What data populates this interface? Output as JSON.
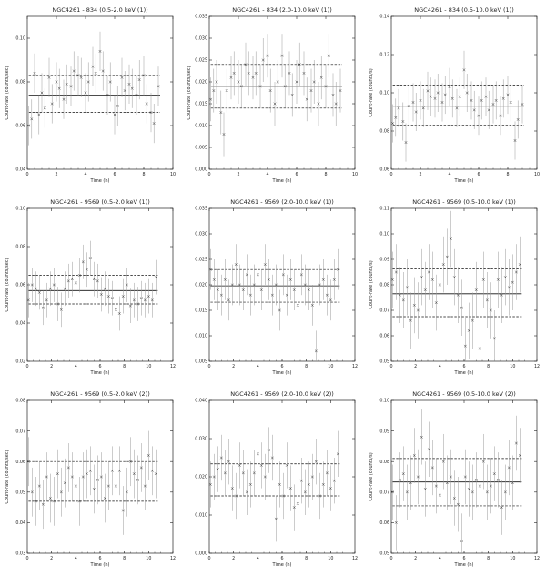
{
  "chart_data": [
    {
      "type": "scatter",
      "title": "NGC4261 - 834 (0.5-2.0 keV (1))",
      "xlabel": "Time (h)",
      "ylabel": "Count-rate (counts/sec)",
      "xlim": [
        0,
        10
      ],
      "ylim": [
        0.04,
        0.11
      ],
      "xticks": [
        "0",
        "2",
        "4",
        "6",
        "8",
        "10"
      ],
      "yticks": [
        "0.04",
        "0.06",
        "0.08",
        "0.10"
      ],
      "ytick_values": [
        0.04,
        0.06,
        0.08,
        0.1
      ],
      "mean": 0.074,
      "band": [
        0.066,
        0.083
      ],
      "x": [
        0.1,
        0.3,
        0.5,
        0.8,
        1.0,
        1.2,
        1.5,
        1.7,
        2.0,
        2.2,
        2.5,
        2.7,
        3.0,
        3.2,
        3.5,
        3.7,
        4.0,
        4.2,
        4.5,
        4.7,
        5.0,
        5.2,
        5.5,
        5.7,
        6.0,
        6.2,
        6.5,
        6.7,
        7.0,
        7.2,
        7.5,
        7.7,
        8.0,
        8.2,
        8.5,
        8.7,
        9.0
      ],
      "y": [
        0.06,
        0.063,
        0.084,
        0.065,
        0.075,
        0.068,
        0.082,
        0.07,
        0.08,
        0.077,
        0.072,
        0.079,
        0.078,
        0.085,
        0.083,
        0.082,
        0.075,
        0.08,
        0.087,
        0.084,
        0.094,
        0.085,
        0.074,
        0.08,
        0.065,
        0.069,
        0.082,
        0.076,
        0.079,
        0.077,
        0.074,
        0.081,
        0.083,
        0.07,
        0.066,
        0.061,
        0.078
      ],
      "err": 0.009
    },
    {
      "type": "scatter",
      "title": "NGC4261 - 834 (2.0-10.0 keV (1))",
      "xlabel": "Time (h)",
      "ylabel": "Count-rate (counts/sec)",
      "xlim": [
        0,
        10
      ],
      "ylim": [
        0.0,
        0.035
      ],
      "xticks": [
        "0",
        "2",
        "4",
        "6",
        "8",
        "10"
      ],
      "yticks": [
        "0.000",
        "0.005",
        "0.010",
        "0.015",
        "0.020",
        "0.025",
        "0.030",
        "0.035"
      ],
      "ytick_values": [
        0.0,
        0.005,
        0.01,
        0.015,
        0.02,
        0.025,
        0.03,
        0.035
      ],
      "mean": 0.019,
      "band": [
        0.014,
        0.024
      ],
      "x": [
        0.1,
        0.3,
        0.5,
        0.8,
        1.0,
        1.2,
        1.5,
        1.7,
        2.0,
        2.2,
        2.5,
        2.7,
        3.0,
        3.2,
        3.5,
        3.7,
        4.0,
        4.2,
        4.5,
        4.7,
        5.0,
        5.2,
        5.5,
        5.7,
        6.0,
        6.2,
        6.5,
        6.7,
        7.0,
        7.2,
        7.5,
        7.7,
        8.0,
        8.2,
        8.5,
        8.7,
        9.0
      ],
      "y": [
        0.016,
        0.018,
        0.02,
        0.013,
        0.008,
        0.018,
        0.021,
        0.022,
        0.02,
        0.019,
        0.024,
        0.022,
        0.021,
        0.022,
        0.019,
        0.025,
        0.026,
        0.018,
        0.015,
        0.02,
        0.026,
        0.019,
        0.022,
        0.017,
        0.02,
        0.024,
        0.022,
        0.016,
        0.018,
        0.02,
        0.015,
        0.021,
        0.019,
        0.026,
        0.017,
        0.015,
        0.018
      ],
      "err": 0.005
    },
    {
      "type": "scatter",
      "title": "NGC4261 - 834 (0.5-10.0 keV (1))",
      "xlabel": "Time (h)",
      "ylabel": "Count-rate (counts/s)",
      "xlim": [
        0,
        10
      ],
      "ylim": [
        0.06,
        0.14
      ],
      "xticks": [
        "0",
        "2",
        "4",
        "6",
        "8",
        "10"
      ],
      "yticks": [
        "0.06",
        "0.08",
        "0.10",
        "0.12",
        "0.14"
      ],
      "ytick_values": [
        0.06,
        0.08,
        0.1,
        0.12,
        0.14
      ],
      "mean": 0.093,
      "band": [
        0.083,
        0.104
      ],
      "x": [
        0.1,
        0.3,
        0.5,
        0.8,
        1.0,
        1.2,
        1.5,
        1.7,
        2.0,
        2.2,
        2.5,
        2.7,
        3.0,
        3.2,
        3.5,
        3.7,
        4.0,
        4.2,
        4.5,
        4.7,
        5.0,
        5.2,
        5.5,
        5.7,
        6.0,
        6.2,
        6.5,
        6.7,
        7.0,
        7.2,
        7.5,
        7.7,
        8.0,
        8.2,
        8.5,
        8.7,
        9.0
      ],
      "y": [
        0.084,
        0.087,
        0.092,
        0.085,
        0.074,
        0.093,
        0.095,
        0.09,
        0.096,
        0.092,
        0.101,
        0.098,
        0.097,
        0.1,
        0.095,
        0.099,
        0.103,
        0.097,
        0.092,
        0.098,
        0.112,
        0.1,
        0.096,
        0.091,
        0.088,
        0.096,
        0.098,
        0.091,
        0.094,
        0.096,
        0.088,
        0.097,
        0.099,
        0.095,
        0.075,
        0.086,
        0.094
      ],
      "err": 0.01
    },
    {
      "type": "scatter",
      "title": "NGC4261 - 9569 (0.5-2.0 keV (1))",
      "xlabel": "Time (h)",
      "ylabel": "Count-rate (counts/sec)",
      "xlim": [
        0,
        12
      ],
      "ylim": [
        0.02,
        0.1
      ],
      "xticks": [
        "0",
        "2",
        "4",
        "6",
        "8",
        "10",
        "12"
      ],
      "yticks": [
        "0.02",
        "0.04",
        "0.06",
        "0.08",
        "0.10"
      ],
      "ytick_values": [
        0.02,
        0.04,
        0.06,
        0.08,
        0.1
      ],
      "mean": 0.057,
      "band": [
        0.05,
        0.065
      ],
      "x": [
        0.1,
        0.4,
        0.7,
        1.0,
        1.3,
        1.6,
        1.9,
        2.2,
        2.5,
        2.8,
        3.1,
        3.4,
        3.7,
        4.0,
        4.3,
        4.6,
        4.9,
        5.2,
        5.5,
        5.8,
        6.1,
        6.4,
        6.7,
        7.0,
        7.3,
        7.6,
        7.9,
        8.2,
        8.5,
        8.8,
        9.1,
        9.4,
        9.7,
        10.0,
        10.3,
        10.6
      ],
      "y": [
        0.052,
        0.06,
        0.058,
        0.056,
        0.048,
        0.052,
        0.058,
        0.06,
        0.05,
        0.047,
        0.058,
        0.062,
        0.063,
        0.061,
        0.065,
        0.072,
        0.068,
        0.074,
        0.063,
        0.062,
        0.055,
        0.058,
        0.054,
        0.053,
        0.047,
        0.045,
        0.054,
        0.06,
        0.049,
        0.052,
        0.05,
        0.053,
        0.052,
        0.054,
        0.052,
        0.064
      ],
      "err": 0.009
    },
    {
      "type": "scatter",
      "title": "NGC4261 - 9569 (2.0-10.0 keV (1))",
      "xlabel": "Time (h)",
      "ylabel": "",
      "xlim": [
        0,
        12
      ],
      "ylim": [
        0.005,
        0.035
      ],
      "xticks": [
        "0",
        "2",
        "4",
        "6",
        "8",
        "10",
        "12"
      ],
      "yticks": [
        "0.005",
        "0.010",
        "0.015",
        "0.020",
        "0.025",
        "0.030",
        "0.035"
      ],
      "ytick_values": [
        0.005,
        0.01,
        0.015,
        0.02,
        0.025,
        0.03,
        0.035
      ],
      "mean": 0.0198,
      "band": [
        0.0166,
        0.023
      ],
      "x": [
        0.1,
        0.4,
        0.7,
        1.0,
        1.3,
        1.6,
        1.9,
        2.2,
        2.5,
        2.8,
        3.1,
        3.4,
        3.7,
        4.0,
        4.3,
        4.6,
        4.9,
        5.2,
        5.5,
        5.8,
        6.1,
        6.4,
        6.7,
        7.0,
        7.3,
        7.6,
        7.9,
        8.2,
        8.5,
        8.8,
        9.1,
        9.4,
        9.7,
        10.0,
        10.3,
        10.6
      ],
      "y": [
        0.023,
        0.021,
        0.019,
        0.018,
        0.021,
        0.017,
        0.02,
        0.024,
        0.02,
        0.019,
        0.022,
        0.018,
        0.02,
        0.022,
        0.019,
        0.024,
        0.021,
        0.018,
        0.02,
        0.015,
        0.022,
        0.018,
        0.021,
        0.019,
        0.016,
        0.022,
        0.02,
        0.019,
        0.016,
        0.007,
        0.02,
        0.021,
        0.018,
        0.017,
        0.021,
        0.023
      ],
      "err": 0.004
    },
    {
      "type": "scatter",
      "title": "NGC4261 - 9569 (0.5-10.0 keV (1))",
      "xlabel": "Time (h)",
      "ylabel": "Count-rate (counts/s)",
      "xlim": [
        0,
        12
      ],
      "ylim": [
        0.05,
        0.11
      ],
      "xticks": [
        "0",
        "2",
        "4",
        "6",
        "8",
        "10",
        "12"
      ],
      "yticks": [
        "0.05",
        "0.06",
        "0.07",
        "0.08",
        "0.09",
        "0.10",
        "0.11"
      ],
      "ytick_values": [
        0.05,
        0.06,
        0.07,
        0.08,
        0.09,
        0.1,
        0.11
      ],
      "mean": 0.0765,
      "band": [
        0.0675,
        0.0862
      ],
      "x": [
        0.1,
        0.4,
        0.7,
        1.0,
        1.3,
        1.6,
        1.9,
        2.2,
        2.5,
        2.8,
        3.1,
        3.4,
        3.7,
        4.0,
        4.3,
        4.6,
        4.9,
        5.2,
        5.5,
        5.8,
        6.1,
        6.4,
        6.7,
        7.0,
        7.3,
        7.6,
        7.9,
        8.2,
        8.5,
        8.8,
        9.1,
        9.4,
        9.7,
        10.0,
        10.3,
        10.6
      ],
      "y": [
        0.082,
        0.085,
        0.076,
        0.074,
        0.079,
        0.066,
        0.072,
        0.07,
        0.083,
        0.078,
        0.085,
        0.082,
        0.073,
        0.08,
        0.088,
        0.091,
        0.098,
        0.083,
        0.076,
        0.071,
        0.056,
        0.062,
        0.066,
        0.078,
        0.055,
        0.082,
        0.074,
        0.07,
        0.059,
        0.082,
        0.076,
        0.083,
        0.079,
        0.081,
        0.085,
        0.088
      ],
      "err": 0.011
    },
    {
      "type": "scatter",
      "title": "NGC4261 - 9569 (0.5-2.0 keV (2))",
      "xlabel": "Time (h)",
      "ylabel": "Count-rate (counts/sec)",
      "xlim": [
        0,
        12
      ],
      "ylim": [
        0.03,
        0.08
      ],
      "xticks": [
        "0",
        "2",
        "4",
        "6",
        "8",
        "10",
        "12"
      ],
      "yticks": [
        "0.03",
        "0.04",
        "0.05",
        "0.06",
        "0.07",
        "0.08"
      ],
      "ytick_values": [
        0.03,
        0.04,
        0.05,
        0.06,
        0.07,
        0.08
      ],
      "mean": 0.054,
      "band": [
        0.047,
        0.06
      ],
      "x": [
        0.1,
        0.4,
        0.7,
        1.0,
        1.3,
        1.6,
        1.9,
        2.2,
        2.5,
        2.8,
        3.1,
        3.4,
        3.7,
        4.0,
        4.3,
        4.6,
        4.9,
        5.2,
        5.5,
        5.8,
        6.1,
        6.4,
        6.7,
        7.0,
        7.3,
        7.6,
        7.9,
        8.2,
        8.5,
        8.8,
        9.1,
        9.4,
        9.7,
        10.0,
        10.3,
        10.6
      ],
      "y": [
        0.06,
        0.05,
        0.047,
        0.052,
        0.046,
        0.055,
        0.048,
        0.047,
        0.056,
        0.05,
        0.053,
        0.058,
        0.055,
        0.052,
        0.047,
        0.055,
        0.056,
        0.057,
        0.051,
        0.054,
        0.055,
        0.048,
        0.052,
        0.057,
        0.052,
        0.057,
        0.044,
        0.05,
        0.06,
        0.056,
        0.054,
        0.058,
        0.052,
        0.062,
        0.057,
        0.056
      ],
      "err": 0.008
    },
    {
      "type": "scatter",
      "title": "NGC4261 - 9569 (2.0-10.0 keV (2))",
      "xlabel": "Time (h)",
      "ylabel": "",
      "xlim": [
        0,
        12
      ],
      "ylim": [
        0.0,
        0.04
      ],
      "xticks": [
        "0",
        "2",
        "4",
        "6",
        "8",
        "10",
        "12"
      ],
      "yticks": [
        "0.000",
        "0.010",
        "0.020",
        "0.030",
        "0.040"
      ],
      "ytick_values": [
        0.0,
        0.01,
        0.02,
        0.03,
        0.04
      ],
      "mean": 0.0192,
      "band": [
        0.015,
        0.0234
      ],
      "x": [
        0.1,
        0.4,
        0.7,
        1.0,
        1.3,
        1.6,
        1.9,
        2.2,
        2.5,
        2.8,
        3.1,
        3.4,
        3.7,
        4.0,
        4.3,
        4.6,
        4.9,
        5.2,
        5.5,
        5.8,
        6.1,
        6.4,
        6.7,
        7.0,
        7.3,
        7.6,
        7.9,
        8.2,
        8.5,
        8.8,
        9.1,
        9.4,
        9.7,
        10.0,
        10.3,
        10.6
      ],
      "y": [
        0.018,
        0.02,
        0.022,
        0.025,
        0.021,
        0.024,
        0.017,
        0.015,
        0.023,
        0.021,
        0.016,
        0.018,
        0.021,
        0.026,
        0.023,
        0.02,
        0.027,
        0.025,
        0.009,
        0.018,
        0.015,
        0.023,
        0.017,
        0.012,
        0.013,
        0.019,
        0.016,
        0.018,
        0.02,
        0.024,
        0.015,
        0.018,
        0.021,
        0.017,
        0.019,
        0.026
      ],
      "err": 0.006
    },
    {
      "type": "scatter",
      "title": "NGC4261 - 9569 (0.5-10.0 keV (2))",
      "xlabel": "Time (h)",
      "ylabel": "Count-rate (counts/s)",
      "xlim": [
        0,
        12
      ],
      "ylim": [
        0.05,
        0.1
      ],
      "xticks": [
        "0",
        "2",
        "4",
        "6",
        "8",
        "10",
        "12"
      ],
      "yticks": [
        "0.05",
        "0.06",
        "0.07",
        "0.08",
        "0.09",
        "0.10"
      ],
      "ytick_values": [
        0.05,
        0.06,
        0.07,
        0.08,
        0.09,
        0.1
      ],
      "mean": 0.0733,
      "band": [
        0.0655,
        0.081
      ],
      "x": [
        0.1,
        0.4,
        0.7,
        1.0,
        1.3,
        1.6,
        1.9,
        2.2,
        2.5,
        2.8,
        3.1,
        3.4,
        3.7,
        4.0,
        4.3,
        4.6,
        4.9,
        5.2,
        5.5,
        5.8,
        6.1,
        6.4,
        6.7,
        7.0,
        7.3,
        7.6,
        7.9,
        8.2,
        8.5,
        8.8,
        9.1,
        9.4,
        9.7,
        10.0,
        10.3,
        10.6
      ],
      "y": [
        0.07,
        0.06,
        0.074,
        0.076,
        0.07,
        0.073,
        0.082,
        0.075,
        0.088,
        0.071,
        0.084,
        0.078,
        0.072,
        0.069,
        0.08,
        0.073,
        0.075,
        0.068,
        0.066,
        0.054,
        0.075,
        0.071,
        0.07,
        0.074,
        0.072,
        0.08,
        0.07,
        0.072,
        0.076,
        0.074,
        0.065,
        0.07,
        0.078,
        0.073,
        0.086,
        0.082
      ],
      "err": 0.009
    }
  ]
}
